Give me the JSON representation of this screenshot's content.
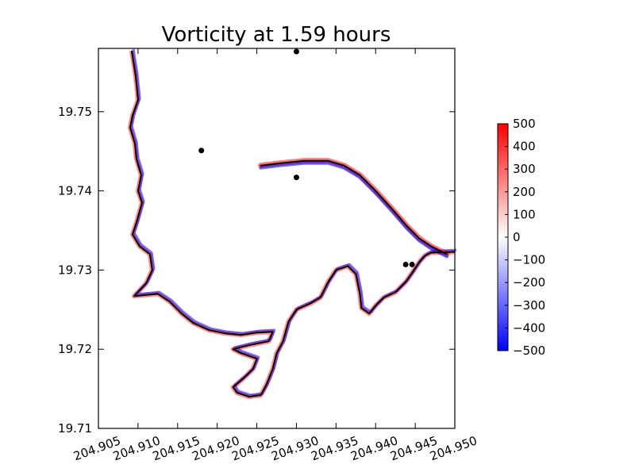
{
  "chart_data": {
    "type": "heatmap",
    "title": "Vorticity at 1.59 hours",
    "xlabel": "",
    "ylabel": "",
    "xlim": [
      204.905,
      204.95
    ],
    "ylim": [
      19.71,
      19.758
    ],
    "x_ticks": [
      204.905,
      204.91,
      204.915,
      204.92,
      204.925,
      204.93,
      204.935,
      204.94,
      204.945,
      204.95
    ],
    "x_tick_labels": [
      "204.905",
      "204.910",
      "204.915",
      "204.920",
      "204.925",
      "204.930",
      "204.935",
      "204.940",
      "204.945",
      "204.950"
    ],
    "y_ticks": [
      19.71,
      19.72,
      19.73,
      19.74,
      19.75
    ],
    "y_tick_labels": [
      "19.71",
      "19.72",
      "19.73",
      "19.74",
      "19.75"
    ],
    "grid": false,
    "colormap": "bwr",
    "colorbar": {
      "min": -500,
      "max": 500,
      "ticks": [
        500,
        400,
        300,
        200,
        100,
        0,
        -100,
        -200,
        -300,
        -400,
        -500
      ],
      "tick_labels": [
        "500",
        "400",
        "300",
        "200",
        "100",
        "0",
        "−100",
        "−200",
        "−300",
        "−400",
        "−500"
      ],
      "colors": {
        "high": "#ff0000",
        "mid": "#ffffff",
        "low": "#0000ff"
      }
    },
    "markers": [
      {
        "x": 204.93,
        "y": 19.7576
      },
      {
        "x": 204.918,
        "y": 19.7451
      },
      {
        "x": 204.93,
        "y": 19.7417
      },
      {
        "x": 204.9438,
        "y": 19.7307
      },
      {
        "x": 204.9446,
        "y": 19.7307
      }
    ],
    "coastline": [
      [
        204.9092,
        19.7577
      ],
      [
        204.9097,
        19.7545
      ],
      [
        204.91,
        19.7515
      ],
      [
        204.9093,
        19.7495
      ],
      [
        204.909,
        19.748
      ],
      [
        204.9096,
        19.746
      ],
      [
        204.9098,
        19.744
      ],
      [
        204.9104,
        19.742
      ],
      [
        204.91,
        19.74
      ],
      [
        204.9105,
        19.7385
      ],
      [
        204.9098,
        19.736
      ],
      [
        204.9093,
        19.7345
      ],
      [
        204.9102,
        19.733
      ],
      [
        204.9115,
        19.732
      ],
      [
        204.9118,
        19.73
      ],
      [
        204.911,
        19.7283
      ],
      [
        204.9095,
        19.7267
      ],
      [
        204.9125,
        19.727
      ],
      [
        204.914,
        19.726
      ],
      [
        204.9155,
        19.7245
      ],
      [
        204.917,
        19.7233
      ],
      [
        204.919,
        19.7224
      ],
      [
        204.921,
        19.722
      ],
      [
        204.923,
        19.7218
      ],
      [
        204.925,
        19.7221
      ],
      [
        204.927,
        19.7222
      ],
      [
        204.9265,
        19.721
      ],
      [
        204.924,
        19.7205
      ],
      [
        204.922,
        19.72
      ],
      [
        204.923,
        19.7195
      ],
      [
        204.925,
        19.7188
      ],
      [
        204.9245,
        19.7175
      ],
      [
        204.9235,
        19.7165
      ],
      [
        204.922,
        19.7152
      ],
      [
        204.9225,
        19.7145
      ],
      [
        204.924,
        19.714
      ],
      [
        204.9255,
        19.7142
      ],
      [
        204.9262,
        19.7155
      ],
      [
        204.927,
        19.7175
      ],
      [
        204.9275,
        19.7195
      ],
      [
        204.9283,
        19.721
      ],
      [
        204.929,
        19.7235
      ],
      [
        204.93,
        19.725
      ],
      [
        204.9318,
        19.7258
      ],
      [
        204.933,
        19.7265
      ],
      [
        204.934,
        19.7285
      ],
      [
        204.935,
        19.73
      ],
      [
        204.9365,
        19.7305
      ],
      [
        204.9375,
        19.7295
      ],
      [
        204.938,
        19.727
      ],
      [
        204.9382,
        19.7252
      ],
      [
        204.9392,
        19.7245
      ],
      [
        204.94,
        19.7255
      ],
      [
        204.941,
        19.7265
      ],
      [
        204.9425,
        19.7272
      ],
      [
        204.9438,
        19.7285
      ],
      [
        204.9445,
        19.7295
      ],
      [
        204.9455,
        19.731
      ],
      [
        204.9462,
        19.7318
      ],
      [
        204.947,
        19.7322
      ],
      [
        204.95,
        19.7323
      ]
    ],
    "breakwater": [
      [
        204.9255,
        19.7432
      ],
      [
        204.928,
        19.7435
      ],
      [
        204.931,
        19.7438
      ],
      [
        204.934,
        19.7438
      ],
      [
        204.936,
        19.7432
      ],
      [
        204.938,
        19.742
      ],
      [
        204.94,
        19.74
      ],
      [
        204.942,
        19.7378
      ],
      [
        204.944,
        19.7355
      ],
      [
        204.9455,
        19.734
      ],
      [
        204.947,
        19.733
      ],
      [
        204.949,
        19.732
      ]
    ]
  }
}
